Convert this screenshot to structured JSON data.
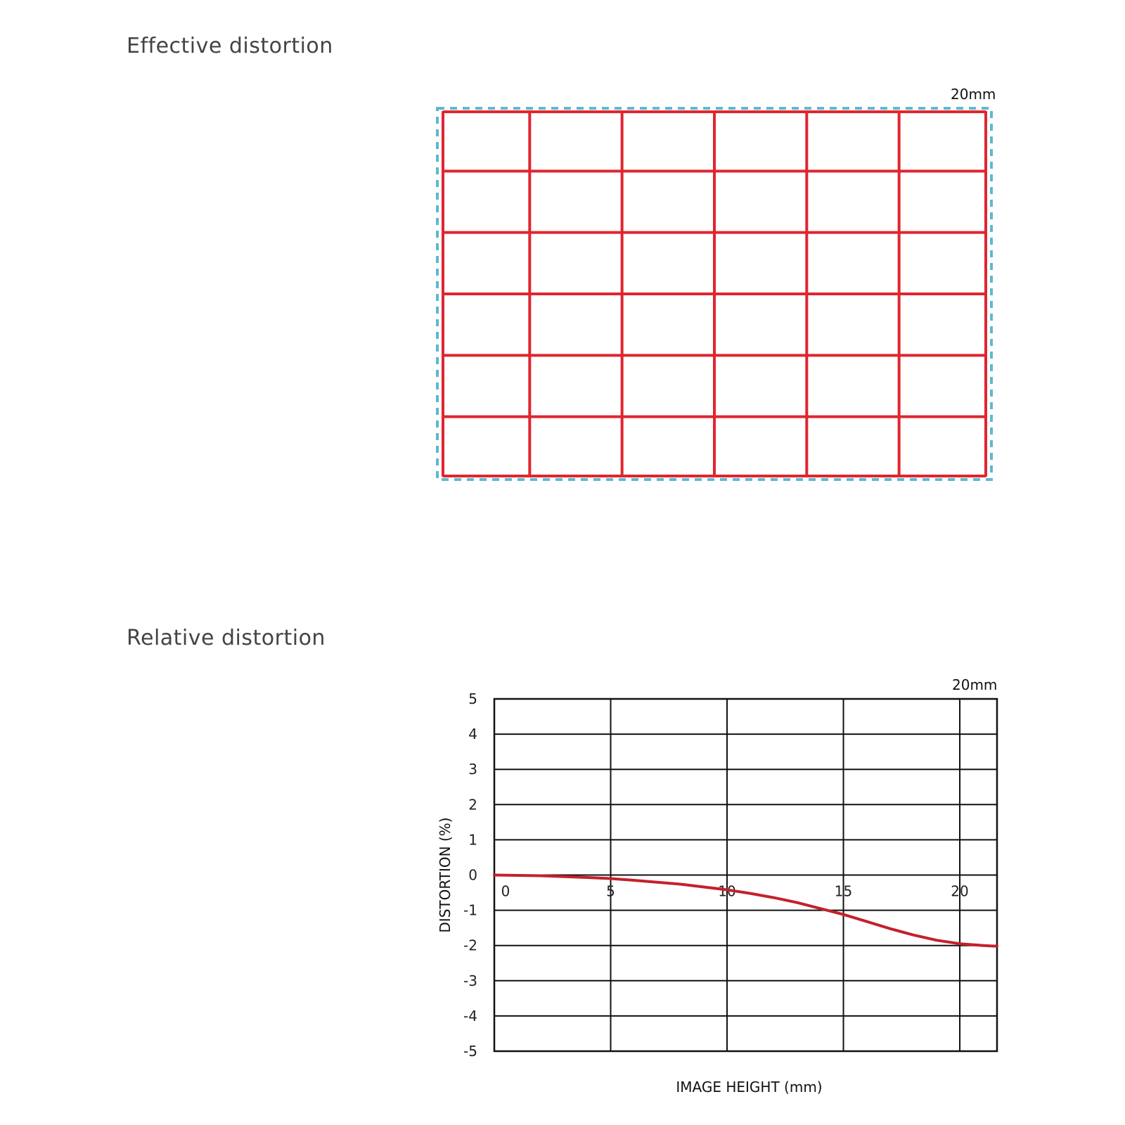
{
  "sections": {
    "effective_title": "Effective distortion",
    "relative_title": "Relative distortion"
  },
  "focal_labels": {
    "effective": "20mm",
    "relative": "20mm"
  },
  "colors": {
    "grid_red": "#e02530",
    "reference_dash": "#5fb8cf",
    "curve_red": "#c4212b",
    "grid_black": "#111111"
  },
  "chart_data": [
    {
      "type": "grid",
      "title": "Effective distortion",
      "annotation": "20mm",
      "columns": 6,
      "rows": 6
    },
    {
      "type": "line",
      "title": "Relative distortion",
      "annotation": "20mm",
      "xlabel": "IMAGE HEIGHT (mm)",
      "ylabel": "DISTORTION (%)",
      "xlim": [
        0,
        21.6
      ],
      "ylim": [
        -5,
        5
      ],
      "xticks": [
        0,
        5,
        10,
        15,
        20
      ],
      "yticks": [
        5,
        4,
        3,
        2,
        1,
        0,
        -1,
        -2,
        -3,
        -4,
        -5
      ],
      "grid": true,
      "series": [
        {
          "x": [
            0,
            2,
            4,
            5,
            6,
            8,
            10,
            11,
            12,
            13,
            14,
            15,
            16,
            17,
            18,
            19,
            20,
            21,
            21.6
          ],
          "y": [
            0,
            -0.02,
            -0.07,
            -0.1,
            -0.15,
            -0.26,
            -0.42,
            -0.52,
            -0.64,
            -0.78,
            -0.95,
            -1.12,
            -1.32,
            -1.52,
            -1.7,
            -1.85,
            -1.95,
            -2.0,
            -2.02
          ]
        }
      ]
    }
  ]
}
